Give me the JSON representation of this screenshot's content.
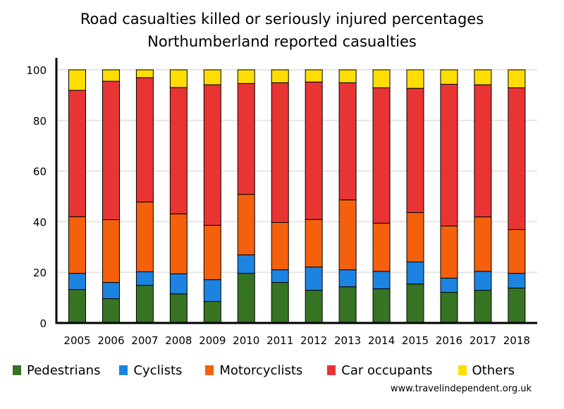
{
  "chart_data": {
    "type": "bar",
    "stacked": true,
    "title": "Road casualties killed or seriously injured percentages",
    "subtitle": "Northumberland reported casualties",
    "xlabel": "",
    "ylabel": "",
    "ylim": [
      0,
      100
    ],
    "yticks": [
      0,
      20,
      40,
      60,
      80,
      100
    ],
    "grid": true,
    "legend_position": "bottom",
    "categories": [
      "2005",
      "2006",
      "2007",
      "2008",
      "2009",
      "2010",
      "2011",
      "2012",
      "2013",
      "2014",
      "2015",
      "2016",
      "2017",
      "2018"
    ],
    "series": [
      {
        "name": "Pedestrians",
        "color": "#367423",
        "values": [
          13.2,
          9.6,
          14.9,
          11.5,
          8.5,
          19.6,
          16.0,
          12.9,
          14.3,
          13.5,
          15.4,
          12.1,
          12.9,
          13.8
        ]
      },
      {
        "name": "Cyclists",
        "color": "#1c84e0",
        "values": [
          6.4,
          6.4,
          5.3,
          7.9,
          8.6,
          7.3,
          5.0,
          9.2,
          6.7,
          6.9,
          8.7,
          5.6,
          7.5,
          5.8
        ]
      },
      {
        "name": "Motorcyclists",
        "color": "#f4600c",
        "values": [
          22.4,
          24.8,
          27.6,
          23.7,
          21.5,
          23.9,
          18.7,
          18.8,
          27.6,
          19.0,
          19.5,
          20.6,
          21.5,
          17.3
        ]
      },
      {
        "name": "Car occupants",
        "color": "#e93434",
        "values": [
          49.9,
          54.7,
          49.1,
          49.9,
          55.5,
          43.8,
          55.2,
          54.3,
          46.3,
          53.5,
          49.1,
          56.0,
          52.2,
          56.0
        ]
      },
      {
        "name": "Others",
        "color": "#ffdd00",
        "values": [
          8.1,
          4.5,
          3.1,
          7.0,
          5.9,
          5.4,
          5.1,
          4.8,
          5.1,
          7.1,
          7.3,
          5.7,
          5.9,
          7.1
        ]
      }
    ]
  },
  "footer": {
    "source": "www.travelindependent.org.uk"
  }
}
